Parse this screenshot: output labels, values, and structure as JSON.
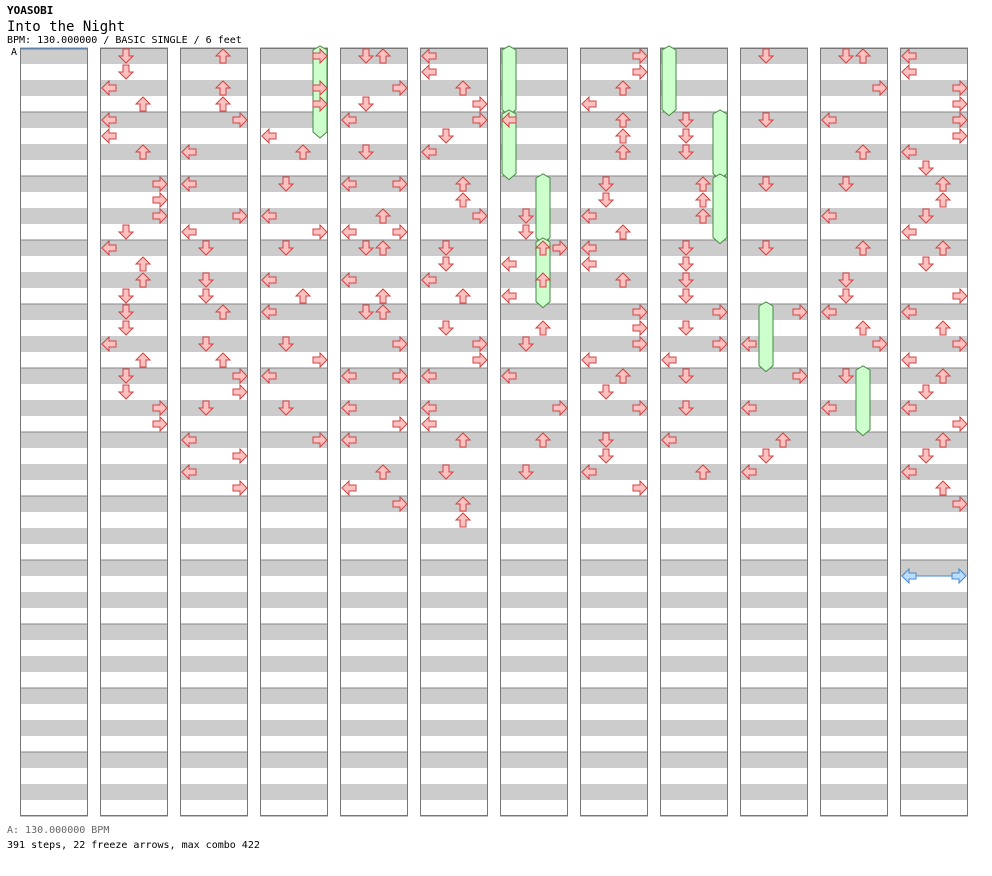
{
  "header": {
    "artist": "YOASOBI",
    "title": "Into the Night",
    "meta": "BPM: 130.000000 / BASIC SINGLE / 6 feet",
    "bpm_marker": "A"
  },
  "footer": {
    "bpm_line": "A: 130.000000 BPM",
    "stats_line": "391 steps, 22 freeze arrows, max combo 422"
  },
  "colors": {
    "stripe": "#cccccc",
    "note_fill": "#ffc0c0",
    "note_stroke": "#cc4444",
    "freeze_fill": "#ccffcc",
    "freeze_stroke": "#448844",
    "shock_fill": "#bbddff",
    "shock_stroke": "#4488cc"
  },
  "chart_data": {
    "type": "table",
    "columns": [
      {
        "notes": [],
        "freezes": []
      },
      {
        "notes": [
          [
            0,
            1
          ],
          [
            1,
            1
          ],
          [
            2,
            0
          ],
          [
            3,
            2
          ],
          [
            4,
            0
          ],
          [
            5,
            0
          ],
          [
            6,
            2
          ],
          [
            8,
            3
          ],
          [
            9,
            3
          ],
          [
            10,
            3
          ],
          [
            11,
            1
          ],
          [
            12,
            0
          ],
          [
            13,
            2
          ],
          [
            14,
            2
          ],
          [
            15,
            1
          ],
          [
            16,
            1
          ],
          [
            17,
            1
          ],
          [
            18,
            0
          ],
          [
            19,
            2
          ],
          [
            20,
            1
          ],
          [
            21,
            1
          ],
          [
            22,
            3
          ],
          [
            23,
            3
          ]
        ],
        "freezes": []
      },
      {
        "notes": [
          [
            0,
            2
          ],
          [
            2,
            2
          ],
          [
            3,
            2
          ],
          [
            4,
            3
          ],
          [
            6,
            0
          ],
          [
            8,
            0
          ],
          [
            10,
            3
          ],
          [
            11,
            0
          ],
          [
            12,
            1
          ],
          [
            14,
            1
          ],
          [
            15,
            1
          ],
          [
            16,
            2
          ],
          [
            18,
            1
          ],
          [
            19,
            2
          ],
          [
            20,
            3
          ],
          [
            21,
            3
          ],
          [
            22,
            1
          ],
          [
            24,
            0
          ],
          [
            25,
            3
          ],
          [
            26,
            0
          ],
          [
            27,
            3
          ]
        ],
        "freezes": []
      },
      {
        "notes": [
          [
            0,
            3
          ],
          [
            2,
            3
          ],
          [
            3,
            3
          ],
          [
            5,
            0
          ],
          [
            6,
            2
          ],
          [
            8,
            1
          ],
          [
            10,
            0
          ],
          [
            11,
            3
          ],
          [
            12,
            1
          ],
          [
            14,
            0
          ],
          [
            15,
            2
          ],
          [
            16,
            0
          ],
          [
            18,
            1
          ],
          [
            19,
            3
          ],
          [
            20,
            0
          ],
          [
            22,
            1
          ],
          [
            24,
            3
          ]
        ],
        "freezes": [
          [
            0,
            3,
            2.5
          ]
        ]
      },
      {
        "notes": [
          [
            0,
            1
          ],
          [
            0,
            2
          ],
          [
            2,
            3
          ],
          [
            3,
            1
          ],
          [
            4,
            0
          ],
          [
            6,
            1
          ],
          [
            8,
            0
          ],
          [
            8,
            3
          ],
          [
            10,
            2
          ],
          [
            11,
            0
          ],
          [
            11,
            3
          ],
          [
            12,
            1
          ],
          [
            12,
            2
          ],
          [
            14,
            0
          ],
          [
            15,
            2
          ],
          [
            16,
            1
          ],
          [
            16,
            2
          ],
          [
            18,
            3
          ],
          [
            20,
            0
          ],
          [
            20,
            3
          ],
          [
            22,
            0
          ],
          [
            23,
            3
          ],
          [
            24,
            0
          ],
          [
            26,
            2
          ],
          [
            27,
            0
          ],
          [
            28,
            3
          ]
        ],
        "freezes": []
      },
      {
        "notes": [
          [
            0,
            0
          ],
          [
            1,
            0
          ],
          [
            2,
            2
          ],
          [
            3,
            3
          ],
          [
            4,
            3
          ],
          [
            5,
            1
          ],
          [
            6,
            0
          ],
          [
            8,
            2
          ],
          [
            9,
            2
          ],
          [
            10,
            3
          ],
          [
            12,
            1
          ],
          [
            13,
            1
          ],
          [
            14,
            0
          ],
          [
            15,
            2
          ],
          [
            17,
            1
          ],
          [
            18,
            3
          ],
          [
            19,
            3
          ],
          [
            20,
            0
          ],
          [
            22,
            0
          ],
          [
            23,
            0
          ],
          [
            24,
            2
          ],
          [
            26,
            1
          ],
          [
            28,
            2
          ],
          [
            29,
            2
          ]
        ],
        "freezes": []
      },
      {
        "notes": [
          [
            4,
            0
          ],
          [
            10,
            1
          ],
          [
            11,
            1
          ],
          [
            12,
            3
          ],
          [
            12,
            2
          ],
          [
            13,
            0
          ],
          [
            14,
            2
          ],
          [
            15,
            0
          ],
          [
            17,
            2
          ],
          [
            18,
            1
          ],
          [
            20,
            0
          ],
          [
            22,
            3
          ],
          [
            24,
            2
          ],
          [
            26,
            1
          ]
        ],
        "freezes": [
          [
            0,
            0,
            1.8
          ],
          [
            4,
            0,
            1.8
          ],
          [
            8,
            2,
            1.8
          ],
          [
            12,
            2,
            1.8
          ]
        ]
      },
      {
        "notes": [
          [
            0,
            3
          ],
          [
            1,
            3
          ],
          [
            2,
            2
          ],
          [
            3,
            0
          ],
          [
            4,
            2
          ],
          [
            5,
            2
          ],
          [
            6,
            2
          ],
          [
            8,
            1
          ],
          [
            9,
            1
          ],
          [
            10,
            0
          ],
          [
            11,
            2
          ],
          [
            12,
            0
          ],
          [
            13,
            0
          ],
          [
            14,
            2
          ],
          [
            16,
            3
          ],
          [
            17,
            3
          ],
          [
            18,
            3
          ],
          [
            19,
            0
          ],
          [
            20,
            2
          ],
          [
            21,
            1
          ],
          [
            22,
            3
          ],
          [
            24,
            1
          ],
          [
            25,
            1
          ],
          [
            26,
            0
          ],
          [
            27,
            3
          ]
        ],
        "freezes": []
      },
      {
        "notes": [
          [
            4,
            1
          ],
          [
            5,
            1
          ],
          [
            6,
            1
          ],
          [
            8,
            2
          ],
          [
            9,
            2
          ],
          [
            10,
            2
          ],
          [
            12,
            1
          ],
          [
            13,
            1
          ],
          [
            14,
            1
          ],
          [
            15,
            1
          ],
          [
            16,
            3
          ],
          [
            17,
            1
          ],
          [
            18,
            3
          ],
          [
            19,
            0
          ],
          [
            20,
            1
          ],
          [
            22,
            1
          ],
          [
            24,
            0
          ],
          [
            26,
            2
          ]
        ],
        "freezes": [
          [
            0,
            0,
            1.8
          ],
          [
            4,
            3,
            1.8
          ],
          [
            8,
            3,
            1.8
          ]
        ]
      },
      {
        "notes": [
          [
            0,
            1
          ],
          [
            4,
            1
          ],
          [
            8,
            1
          ],
          [
            12,
            1
          ],
          [
            16,
            3
          ],
          [
            18,
            0
          ],
          [
            20,
            3
          ],
          [
            22,
            0
          ],
          [
            24,
            2
          ],
          [
            25,
            1
          ],
          [
            26,
            0
          ]
        ],
        "freezes": [
          [
            16,
            1,
            1.8
          ]
        ]
      },
      {
        "notes": [
          [
            0,
            1
          ],
          [
            0,
            2
          ],
          [
            2,
            3
          ],
          [
            4,
            0
          ],
          [
            6,
            2
          ],
          [
            8,
            1
          ],
          [
            10,
            0
          ],
          [
            12,
            2
          ],
          [
            14,
            1
          ],
          [
            15,
            1
          ],
          [
            16,
            0
          ],
          [
            17,
            2
          ],
          [
            18,
            3
          ],
          [
            20,
            1
          ],
          [
            22,
            0
          ]
        ],
        "freezes": [
          [
            20,
            2,
            1.8
          ]
        ]
      },
      {
        "notes": [
          [
            0,
            0
          ],
          [
            1,
            0
          ],
          [
            2,
            3
          ],
          [
            3,
            3
          ],
          [
            4,
            3
          ],
          [
            5,
            3
          ],
          [
            6,
            0
          ],
          [
            7,
            1
          ],
          [
            8,
            2
          ],
          [
            9,
            2
          ],
          [
            10,
            1
          ],
          [
            11,
            0
          ],
          [
            12,
            2
          ],
          [
            13,
            1
          ],
          [
            15,
            3
          ],
          [
            16,
            0
          ],
          [
            17,
            2
          ],
          [
            18,
            3
          ],
          [
            19,
            0
          ],
          [
            20,
            2
          ],
          [
            21,
            1
          ],
          [
            22,
            0
          ],
          [
            23,
            3
          ],
          [
            24,
            2
          ],
          [
            25,
            1
          ],
          [
            26,
            0
          ],
          [
            27,
            2
          ],
          [
            28,
            3
          ]
        ],
        "freezes": []
      }
    ]
  }
}
